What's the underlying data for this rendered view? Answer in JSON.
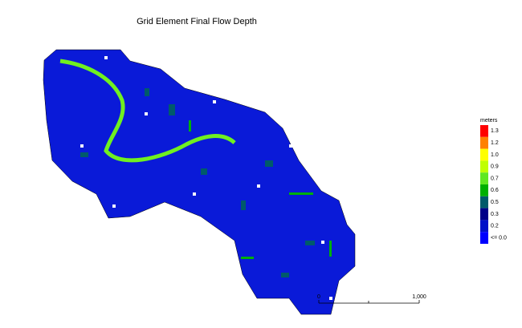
{
  "title": "Grid Element Final Flow Depth",
  "legend": {
    "title": "meters",
    "items": [
      {
        "label": "1.3",
        "color": "#ff0000"
      },
      {
        "label": "1.2",
        "color": "#ff8000"
      },
      {
        "label": "1.0",
        "color": "#ffff00"
      },
      {
        "label": "0.9",
        "color": "#c0ff00"
      },
      {
        "label": "0.7",
        "color": "#60e820"
      },
      {
        "label": "0.6",
        "color": "#00b000"
      },
      {
        "label": "0.5",
        "color": "#005a6a"
      },
      {
        "label": "0.3",
        "color": "#000088"
      },
      {
        "label": "0.2",
        "color": "#0010c8"
      },
      {
        "label": "<= 0.0",
        "color": "#0000ff"
      }
    ]
  },
  "scale_bar": {
    "start": "0",
    "end": "1,000"
  }
}
